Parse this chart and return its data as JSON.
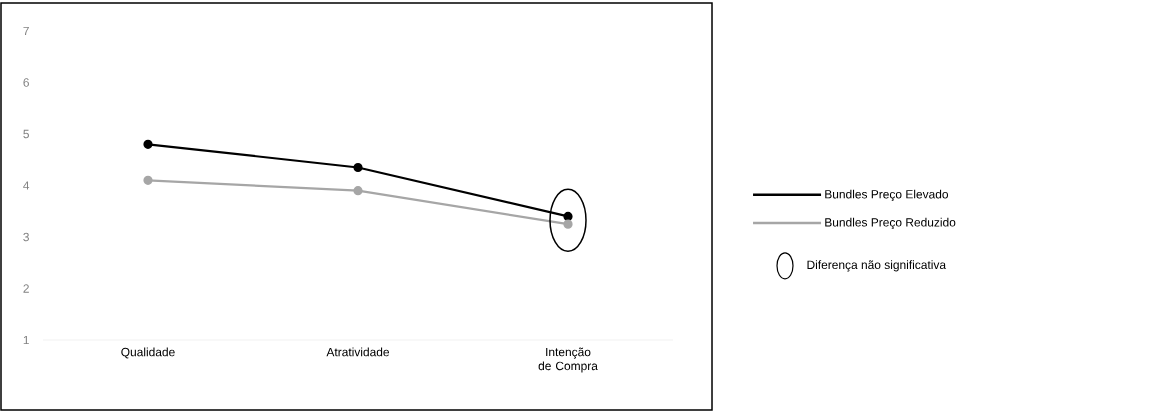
{
  "chart_data": {
    "type": "line",
    "categories": [
      "Qualidade",
      "Atratividade",
      "Intenção de Compra"
    ],
    "series": [
      {
        "name": "Bundles Preço Elevado",
        "color": "#000000",
        "values": [
          4.8,
          4.35,
          3.4
        ]
      },
      {
        "name": "Bundles Preço Reduzido",
        "color": "#a6a6a6",
        "values": [
          4.1,
          3.9,
          3.25
        ]
      }
    ],
    "ylim": [
      1,
      7
    ],
    "yticks": [
      1,
      2,
      3,
      4,
      5,
      6,
      7
    ],
    "grid": false,
    "legend": "right",
    "marker": "circle",
    "line_style": "solid",
    "annotations": [
      "Diferença não significativa"
    ]
  }
}
